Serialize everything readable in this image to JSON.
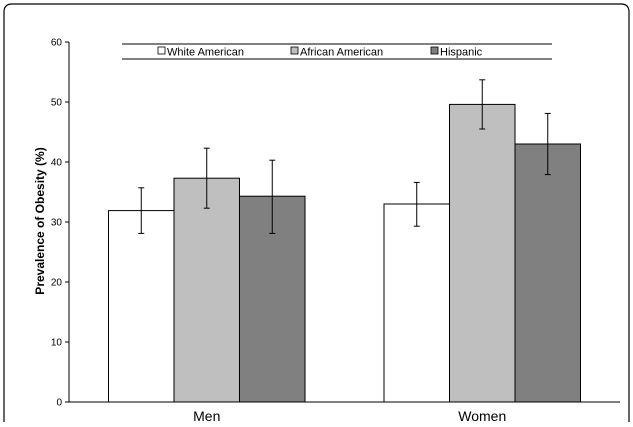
{
  "chart_data": {
    "type": "bar",
    "title": "",
    "xlabel": "",
    "ylabel": "Prevalence of Obesity (%)",
    "ylim": [
      0,
      60
    ],
    "yticks": [
      0,
      10,
      20,
      30,
      40,
      50,
      60
    ],
    "categories": [
      "Men",
      "Women"
    ],
    "legend_position": "top",
    "grid": false,
    "series": [
      {
        "name": "White American",
        "color": "#ffffff",
        "values": [
          31.9,
          33.0
        ],
        "err_low": [
          28.1,
          29.3
        ],
        "err_high": [
          35.7,
          36.6
        ]
      },
      {
        "name": "African American",
        "color": "#bfbfbf",
        "values": [
          37.3,
          49.6
        ],
        "err_low": [
          32.3,
          45.5
        ],
        "err_high": [
          42.3,
          53.7
        ]
      },
      {
        "name": "Hispanic",
        "color": "#808080",
        "values": [
          34.3,
          43.0
        ],
        "err_low": [
          28.1,
          37.9
        ],
        "err_high": [
          40.3,
          48.1
        ]
      }
    ]
  }
}
